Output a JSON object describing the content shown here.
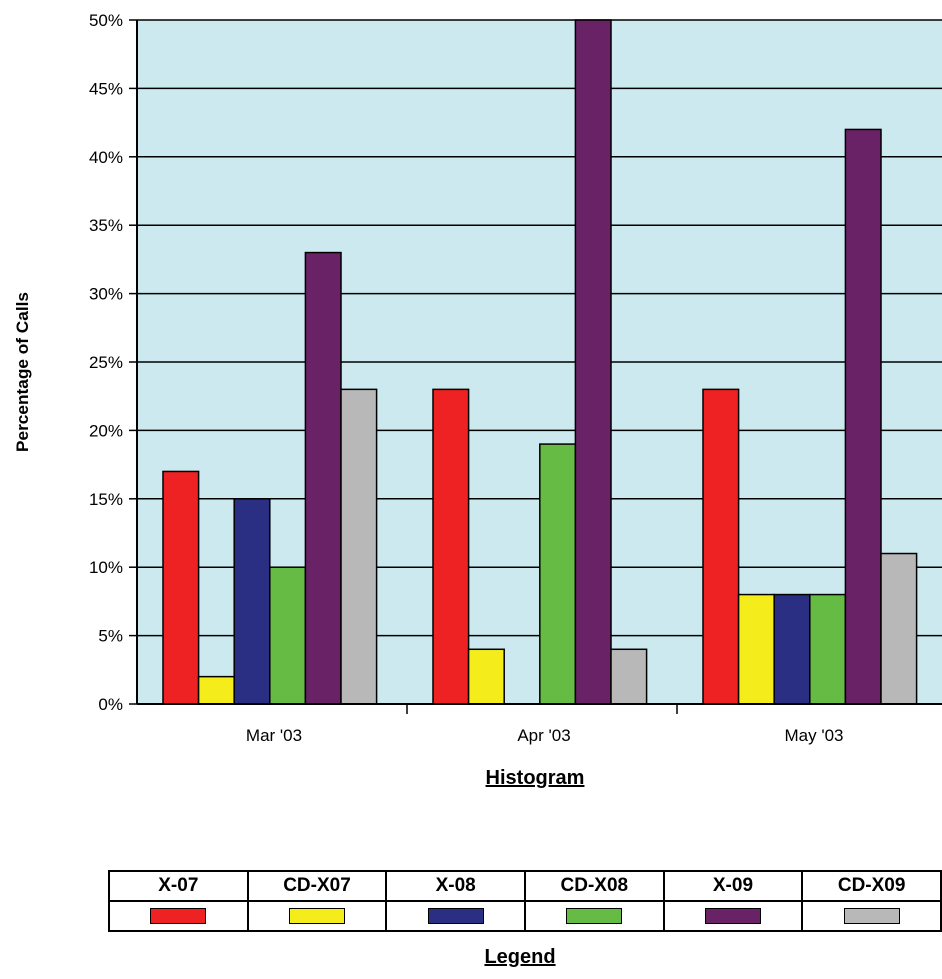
{
  "chart_data": {
    "type": "bar",
    "categories": [
      "Mar '03",
      "Apr '03",
      "May '03"
    ],
    "series": [
      {
        "name": "X-07",
        "values": [
          17,
          23,
          23
        ],
        "color": "#ee2222"
      },
      {
        "name": "CD-X07",
        "values": [
          2,
          4,
          8
        ],
        "color": "#f5ec1c"
      },
      {
        "name": "X-08",
        "values": [
          15,
          0,
          8
        ],
        "color": "#2b2f84"
      },
      {
        "name": "CD-X08",
        "values": [
          10,
          19,
          8
        ],
        "color": "#66bb44"
      },
      {
        "name": "X-09",
        "values": [
          33,
          50,
          42
        ],
        "color": "#6a2266"
      },
      {
        "name": "CD-X09",
        "values": [
          23,
          4,
          11
        ],
        "color": "#b8b8b8"
      }
    ],
    "ylabel": "Percentage of Calls",
    "ylim": [
      0,
      50
    ],
    "yticks": [
      0,
      5,
      10,
      15,
      20,
      25,
      30,
      35,
      40,
      45,
      50
    ],
    "ytick_labels": [
      "0%",
      "5%",
      "10%",
      "15%",
      "20%",
      "25%",
      "30%",
      "35%",
      "40%",
      "45%",
      "50%"
    ],
    "grid": true,
    "plot_background": "#cce9f0",
    "chart_caption": "Histogram",
    "legend_caption": "Legend",
    "legend_placement": "bottom"
  }
}
